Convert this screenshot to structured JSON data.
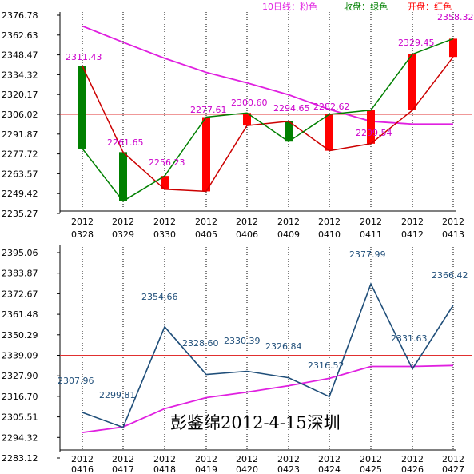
{
  "legend": {
    "ma10": {
      "label": "10日线：粉色",
      "color": "#e020e0"
    },
    "close": {
      "label": "收盘：绿色",
      "color": "#008000"
    },
    "open": {
      "label": "开盘：红色",
      "color": "#ff0000"
    }
  },
  "watermark": "彭鉴绵2012-4-15深圳",
  "colors": {
    "candle_up": "#ff0000",
    "candle_down": "#008000",
    "open_line": "#cc0000",
    "close_line": "#008000",
    "ma_line": "#e020e0",
    "ref_line": "#e03030",
    "forecast_line": "#1f4e79",
    "grid": "#000000"
  },
  "chart_data": [
    {
      "type": "candlestick",
      "title": "",
      "y_ticks": [
        "2376.78",
        "2362.63",
        "2348.47",
        "2334.32",
        "2320.17",
        "2306.02",
        "2291.87",
        "2277.72",
        "2263.57",
        "2249.42",
        "2235.27"
      ],
      "ylim": [
        2235.27,
        2376.78
      ],
      "reference_line": 2306.02,
      "dates": [
        [
          "2012",
          "0328"
        ],
        [
          "2012",
          "0329"
        ],
        [
          "2012",
          "0330"
        ],
        [
          "2012",
          "0405"
        ],
        [
          "2012",
          "0406"
        ],
        [
          "2012",
          "0409"
        ],
        [
          "2012",
          "0410"
        ],
        [
          "2012",
          "0411"
        ],
        [
          "2012",
          "0412"
        ],
        [
          "2012",
          "0413"
        ]
      ],
      "open": [
        2340.5,
        2279.0,
        2252.5,
        2251.0,
        2298.0,
        2301.0,
        2280.0,
        2285.0,
        2309.0,
        2347.0
      ],
      "close": [
        2281.5,
        2244.0,
        2262.0,
        2304.0,
        2307.0,
        2286.5,
        2306.0,
        2309.0,
        2349.0,
        2360.0
      ],
      "ma10": [
        2369.0,
        2357.5,
        2346.0,
        2336.0,
        2328.5,
        2320.0,
        2309.5,
        2301.0,
        2299.0,
        2299.0
      ],
      "point_labels": [
        "2311.43",
        "2261.65",
        "2256.23",
        "2277.61",
        "2300.60",
        "2294.65",
        "2282.62",
        "2299.54",
        "2329.45",
        "2358.32"
      ]
    },
    {
      "type": "line",
      "title": "",
      "y_ticks": [
        "2395.06",
        "2383.87",
        "2372.67",
        "2361.48",
        "2350.29",
        "2339.09",
        "2327.90",
        "2316.70",
        "2305.51",
        "2294.32",
        "2283.12"
      ],
      "ylim": [
        2283.12,
        2395.06
      ],
      "reference_line": 2339.09,
      "dates": [
        [
          "2012",
          "0416"
        ],
        [
          "2012",
          "0417"
        ],
        [
          "2012",
          "0418"
        ],
        [
          "2012",
          "0419"
        ],
        [
          "2012",
          "0420"
        ],
        [
          "2012",
          "0423"
        ],
        [
          "2012",
          "0424"
        ],
        [
          "2012",
          "0425"
        ],
        [
          "2012",
          "0426"
        ],
        [
          "2012",
          "0427"
        ]
      ],
      "series": [
        {
          "values": [
            2307.96,
            2299.81,
            2354.66,
            2328.6,
            2330.39,
            2326.84,
            2316.52,
            2377.99,
            2331.63,
            2366.42
          ]
        },
        {
          "values": [
            2297.0,
            2300.0,
            2310.0,
            2316.0,
            2319.0,
            2322.5,
            2326.5,
            2333.0,
            2333.0,
            2333.5
          ]
        }
      ],
      "point_labels": [
        "2307.96",
        "2299.81",
        "2354.66",
        "2328.60",
        "2330.39",
        "2326.84",
        "2316.52",
        "2377.99",
        "2331.63",
        "2366.42"
      ]
    }
  ]
}
